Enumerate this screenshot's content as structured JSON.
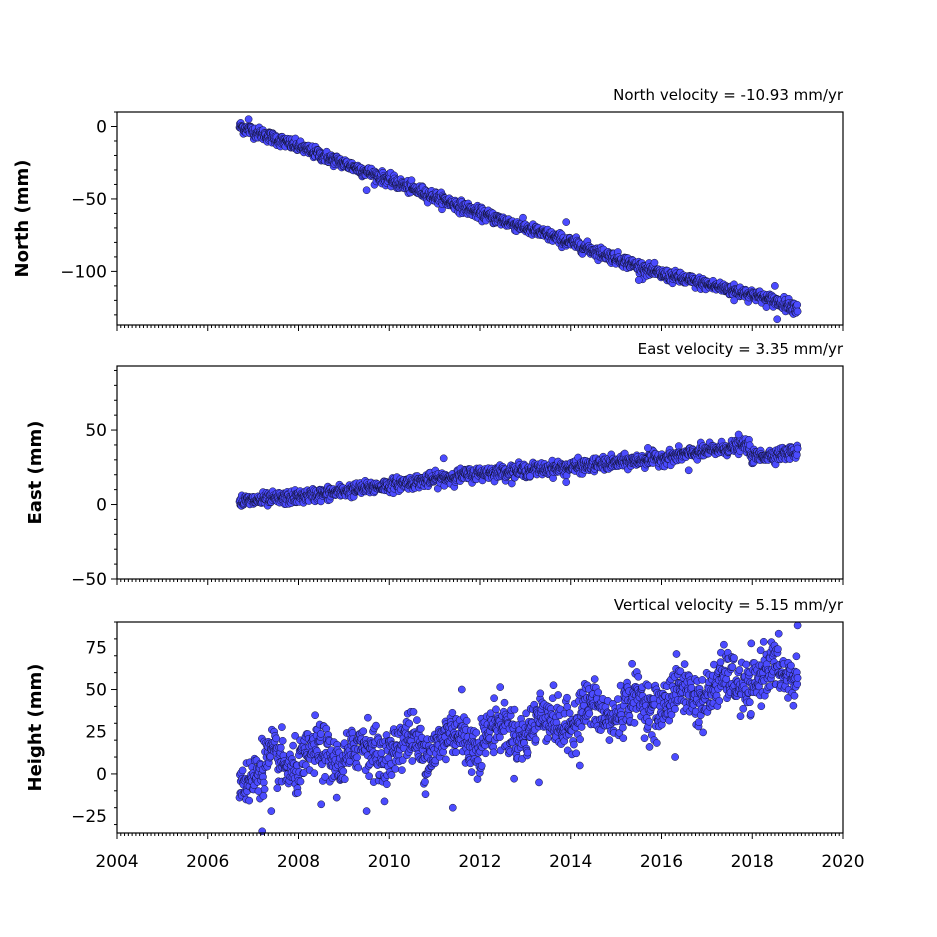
{
  "style": {
    "marker_color": "#4b4bff",
    "marker_edge": "#111133"
  },
  "x_axis": {
    "range": [
      2004,
      2020
    ],
    "tick_labels": [
      "2004",
      "2006",
      "2008",
      "2010",
      "2012",
      "2014",
      "2016",
      "2018",
      "2020"
    ]
  },
  "chart_data": [
    {
      "type": "scatter",
      "name": "north",
      "title": "North velocity = -10.93 mm/yr",
      "ylabel": "North (mm)",
      "ylim": [
        -137,
        10
      ],
      "yticks": [
        0,
        -50,
        -100
      ],
      "ytick_labels": [
        "0",
        "−50",
        "−100"
      ],
      "trend": {
        "x": [
          2006.7,
          2008.0,
          2010.0,
          2012.0,
          2014.0,
          2016.0,
          2018.0,
          2019.0
        ],
        "y": [
          0,
          -14,
          -37,
          -60,
          -80,
          -102,
          -116,
          -125
        ]
      },
      "scatter_sd": 2.0,
      "outliers": {
        "x": [
          2006.9,
          2009.5,
          2013.9,
          2015.5,
          2017.6,
          2018.5,
          2018.55
        ],
        "y": [
          5,
          -44,
          -66,
          -106,
          -120,
          -110,
          -133
        ]
      }
    },
    {
      "type": "scatter",
      "name": "east",
      "title": "East velocity = 3.35 mm/yr",
      "ylabel": "East (mm)",
      "ylim": [
        -50,
        93
      ],
      "yticks": [
        50,
        0,
        -50
      ],
      "ytick_labels": [
        "50",
        "0",
        "−50"
      ],
      "trend": {
        "x": [
          2006.7,
          2008.0,
          2010.0,
          2012.0,
          2014.0,
          2016.0,
          2017.9,
          2018.0,
          2019.0
        ],
        "y": [
          2,
          5,
          13,
          21,
          25,
          31,
          40,
          32,
          35
        ]
      },
      "scatter_sd": 2.2,
      "outliers": {
        "x": [
          2011.2,
          2013.1,
          2013.9,
          2015.7,
          2016.6,
          2017.7
        ],
        "y": [
          31,
          19,
          15,
          38,
          23,
          47
        ]
      }
    },
    {
      "type": "scatter",
      "name": "height",
      "title": "Vertical velocity = 5.15 mm/yr",
      "ylabel": "Height (mm)",
      "ylim": [
        -35,
        90
      ],
      "yticks": [
        75,
        50,
        25,
        0,
        -25
      ],
      "ytick_labels": [
        "75",
        "50",
        "25",
        "0",
        "−25"
      ],
      "trend": {
        "x": [
          2006.7,
          2008.0,
          2010.0,
          2012.0,
          2014.0,
          2016.0,
          2018.0,
          2019.0
        ],
        "y": [
          0,
          8,
          15,
          22,
          33,
          43,
          56,
          62
        ],
        "annual_amplitude": 6
      },
      "scatter_sd": 7.5,
      "outliers": {
        "x": [
          2007.2,
          2007.4,
          2008.5,
          2009.5,
          2010.8,
          2011.4,
          2011.6,
          2013.3,
          2014.2,
          2016.3,
          2019.0
        ],
        "y": [
          -34,
          -22,
          -18,
          -22,
          -12,
          -20,
          50,
          -5,
          5,
          10,
          88
        ]
      }
    }
  ]
}
